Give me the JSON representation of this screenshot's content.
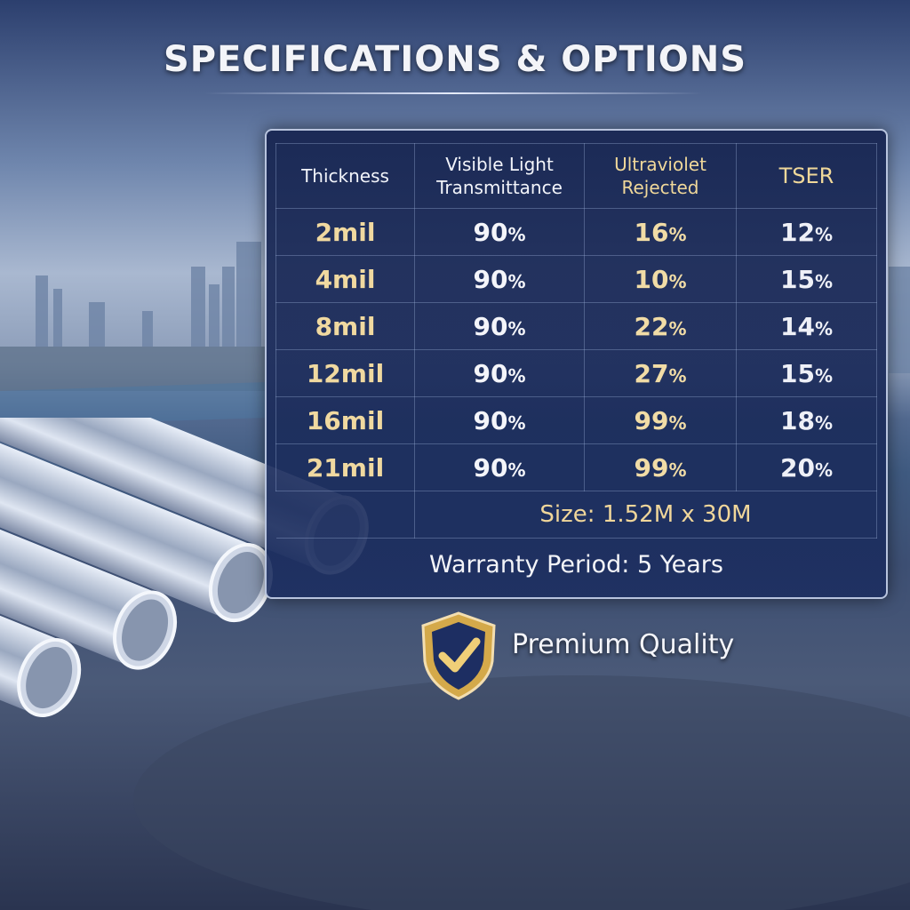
{
  "title": "SPECIFICATIONS & OPTIONS",
  "table": {
    "headers": {
      "thickness": "Thickness",
      "vlt_line1": "Visible Light",
      "vlt_line2": "Transmittance",
      "uv_line1": "Ultraviolet",
      "uv_line2": "Rejected",
      "tser": "TSER"
    },
    "rows": [
      {
        "thickness": "2mil",
        "vlt": "90",
        "uv": "16",
        "tser": "12"
      },
      {
        "thickness": "4mil",
        "vlt": "90",
        "uv": "10",
        "tser": "15"
      },
      {
        "thickness": "8mil",
        "vlt": "90",
        "uv": "22",
        "tser": "14"
      },
      {
        "thickness": "12mil",
        "vlt": "90",
        "uv": "27",
        "tser": "15"
      },
      {
        "thickness": "16mil",
        "vlt": "90",
        "uv": "99",
        "tser": "18"
      },
      {
        "thickness": "21mil",
        "vlt": "90",
        "uv": "99",
        "tser": "20"
      }
    ],
    "percent": "%",
    "size": "Size: 1.52M x 30M",
    "warranty": "Warranty Period: 5 Years"
  },
  "badge": {
    "icon": "shield-check-icon",
    "label": "Premium Quality"
  },
  "colors": {
    "gold": "#f0d9a0",
    "panel": "#1c2e60",
    "shield": "#d4a94a"
  }
}
